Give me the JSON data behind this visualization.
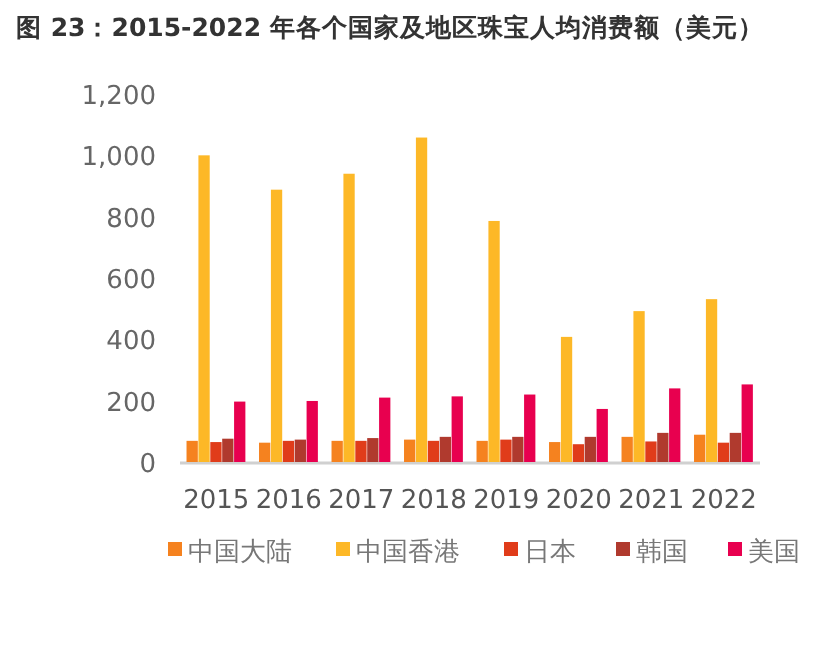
{
  "chart_data": {
    "type": "bar",
    "title": "图 23：2015-2022 年各个国家及地区珠宝人均消费额（美元）",
    "categories": [
      "2015",
      "2016",
      "2017",
      "2018",
      "2019",
      "2020",
      "2021",
      "2022"
    ],
    "series": [
      {
        "name": "中国大陆",
        "color": "#f5821f",
        "values": [
          69,
          63,
          69,
          73,
          69,
          65,
          82,
          89
        ]
      },
      {
        "name": "中国香港",
        "color": "#fdb827",
        "values": [
          1000,
          888,
          940,
          1058,
          786,
          408,
          492,
          531
        ]
      },
      {
        "name": "日本",
        "color": "#e03c1a",
        "values": [
          65,
          69,
          69,
          69,
          73,
          58,
          67,
          63
        ]
      },
      {
        "name": "韩国",
        "color": "#b03a2e",
        "values": [
          76,
          73,
          78,
          82,
          82,
          82,
          95,
          95
        ]
      },
      {
        "name": "美国",
        "color": "#e8004f",
        "values": [
          197,
          199,
          210,
          214,
          220,
          173,
          240,
          253
        ]
      }
    ],
    "ylim": [
      0,
      1200
    ],
    "yticks": [
      0,
      {
        "value": 200,
        "label": "200"
      },
      {
        "value": 400,
        "label": "400"
      },
      {
        "value": 600,
        "label": "600"
      },
      {
        "value": 800,
        "label": "800"
      },
      {
        "value": 1000,
        "label": "1,000"
      },
      {
        "value": 1200,
        "label": "1,200"
      }
    ],
    "grid": false,
    "legend": "bottom"
  }
}
